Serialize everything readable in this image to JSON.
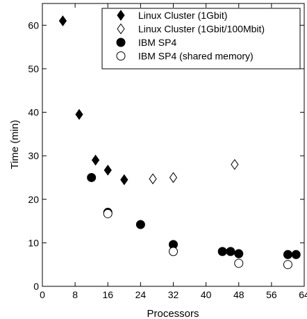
{
  "chart_data": {
    "type": "scatter",
    "title": "",
    "xlabel": "Processors",
    "ylabel": "Time  (min)",
    "xlim": [
      0,
      64
    ],
    "ylim": [
      0,
      65
    ],
    "xticks": [
      0,
      8,
      16,
      24,
      32,
      40,
      48,
      56,
      64
    ],
    "yticks": [
      0,
      10,
      20,
      30,
      40,
      50,
      60
    ],
    "grid": false,
    "legend_position": "top-right",
    "series": [
      {
        "name": "Linux Cluster (1Gbit)",
        "marker": "diamond",
        "filled": true,
        "points": [
          [
            5,
            61
          ],
          [
            9,
            39.5
          ],
          [
            13,
            29
          ],
          [
            16,
            26.7
          ],
          [
            20,
            24.5
          ]
        ]
      },
      {
        "name": "Linux Cluster (1Gbit/100Mbit)",
        "marker": "diamond",
        "filled": false,
        "points": [
          [
            27,
            24.7
          ],
          [
            32,
            25
          ],
          [
            47,
            28
          ]
        ]
      },
      {
        "name": "IBM SP4",
        "marker": "circle",
        "filled": true,
        "points": [
          [
            12,
            25
          ],
          [
            16,
            17
          ],
          [
            24,
            14.2
          ],
          [
            32,
            9.6
          ],
          [
            44,
            8
          ],
          [
            46,
            8
          ],
          [
            48,
            7.5
          ],
          [
            60,
            7.3
          ],
          [
            62,
            7.3
          ]
        ]
      },
      {
        "name": "IBM SP4 (shared memory)",
        "marker": "circle",
        "filled": false,
        "points": [
          [
            16,
            16.7
          ],
          [
            32,
            8
          ],
          [
            48,
            5.3
          ],
          [
            60,
            5
          ]
        ]
      }
    ]
  }
}
